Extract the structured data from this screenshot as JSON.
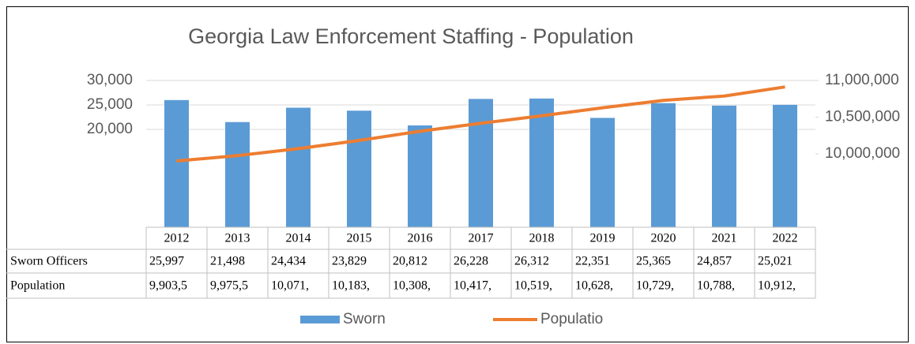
{
  "chart_data": {
    "type": "bar_line_table",
    "title": "Georgia Law Enforcement Staffing - Population",
    "categories": [
      "2012",
      "2013",
      "2014",
      "2015",
      "2016",
      "2017",
      "2018",
      "2019",
      "2020",
      "2021",
      "2022"
    ],
    "series": [
      {
        "name": "Sworn",
        "row_label": "Sworn Officers",
        "color": "#5b9bd5",
        "kind": "bar",
        "values": [
          25997,
          21498,
          24434,
          23829,
          20812,
          26228,
          26312,
          22351,
          25365,
          24857,
          25021
        ],
        "value_labels": [
          "25,997",
          "21,498",
          "24,434",
          "23,829",
          "20,812",
          "26,228",
          "26,312",
          "22,351",
          "25,365",
          "24,857",
          "25,021"
        ]
      },
      {
        "name": "Populatio",
        "row_label": "Population",
        "color": "#ed7d31",
        "kind": "line",
        "axis": "y2",
        "values": [
          9903500,
          9975500,
          10071000,
          10183000,
          10308000,
          10417000,
          10519000,
          10628000,
          10729000,
          10788000,
          10912000
        ],
        "value_labels": [
          "9,903,5",
          "9,975,5",
          "10,071,",
          "10,183,",
          "10,308,",
          "10,417,",
          "10,519,",
          "10,628,",
          "10,729,",
          "10,788,",
          "10,912,"
        ]
      }
    ],
    "ylim": [
      0,
      30000
    ],
    "yticks": [
      {
        "value": 20000,
        "label": "20,000"
      },
      {
        "value": 25000,
        "label": "25,000"
      },
      {
        "value": 30000,
        "label": "30,000"
      }
    ],
    "y2lim": [
      9000000,
      11000000
    ],
    "y2ticks": [
      {
        "value": 10000000,
        "label": "10,000,000"
      },
      {
        "value": 10500000,
        "label": "10,500,000"
      },
      {
        "value": 11000000,
        "label": "11,000,000"
      }
    ],
    "grid": true,
    "legend": "bottom"
  }
}
